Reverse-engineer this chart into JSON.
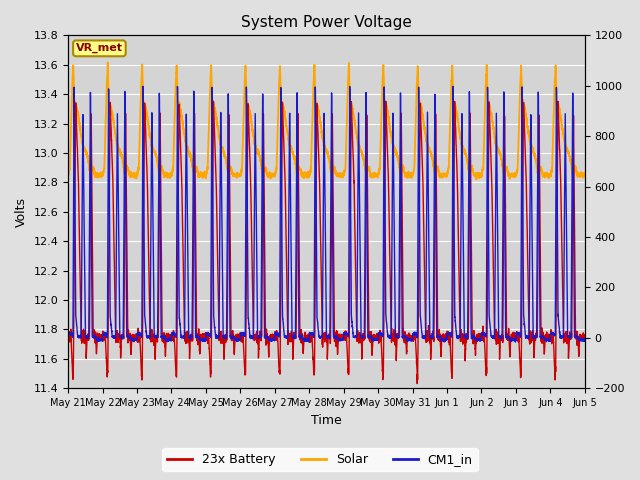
{
  "title": "System Power Voltage",
  "xlabel": "Time",
  "ylabel": "Volts",
  "ylim_left": [
    11.4,
    13.8
  ],
  "ylim_right": [
    -200,
    1200
  ],
  "background_color": "#e0e0e0",
  "plot_bg_color": "#d4d4d4",
  "grid_color": "white",
  "series": {
    "battery": {
      "color": "#cc0000",
      "label": "23x Battery",
      "lw": 1.0
    },
    "solar": {
      "color": "#ffa500",
      "label": "Solar",
      "lw": 1.3
    },
    "cm1": {
      "color": "#1a1acc",
      "label": "CM1_in",
      "lw": 1.0
    }
  },
  "num_cycles": 15,
  "xtick_labels": [
    "May 21",
    "May 22",
    "May 23",
    "May 24",
    "May 25",
    "May 26",
    "May 27",
    "May 28",
    "May 29",
    "May 30",
    "May 31",
    "Jun 1",
    "Jun 2",
    "Jun 3",
    "Jun 4",
    "Jun 5"
  ],
  "yticks_left": [
    11.4,
    11.6,
    11.8,
    12.0,
    12.2,
    12.4,
    12.6,
    12.8,
    13.0,
    13.2,
    13.4,
    13.6,
    13.8
  ],
  "yticks_right": [
    -200,
    0,
    200,
    400,
    600,
    800,
    1000,
    1200
  ],
  "annotation_text": "VR_met",
  "annotation_box_facecolor": "#ffff88",
  "annotation_box_edgecolor": "#aa8800"
}
